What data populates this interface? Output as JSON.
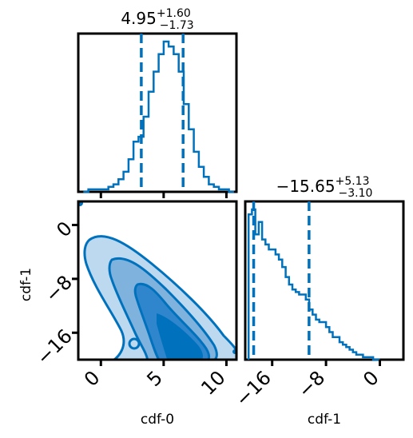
{
  "colors": {
    "accent": "#0072bd",
    "frame": "#000000",
    "fill_light": "#bcd9ef",
    "fill_mid": "#7fb2dc",
    "fill_dark": "#2f86cc"
  },
  "chart_data": [
    {
      "type": "histogram",
      "panel": "cdf-0 marginal",
      "title": {
        "value": "4.95",
        "sup": "+1.60",
        "sub": "−1.73"
      },
      "xlim": [
        -1.8,
        10.8
      ],
      "quantiles": [
        3.22,
        4.95,
        6.55
      ],
      "bins": [
        -1.4,
        -1.0,
        -0.6,
        -0.2,
        0.2,
        0.6,
        1.0,
        1.4,
        1.8,
        2.2,
        2.6,
        3.0,
        3.4,
        3.8,
        4.2,
        4.6,
        5.0,
        5.4,
        5.8,
        6.2,
        6.6,
        7.0,
        7.4,
        7.8,
        8.2,
        8.6,
        9.0,
        9.4,
        9.8,
        10.2,
        10.6
      ],
      "counts": [
        0,
        1,
        1,
        1,
        1,
        2,
        3,
        5,
        8,
        13,
        20,
        22,
        30,
        40,
        48,
        55,
        60,
        58,
        55,
        48,
        35,
        25,
        16,
        10,
        6,
        3,
        2,
        1,
        1,
        0
      ]
    },
    {
      "type": "contour",
      "panel": "cdf-0 vs cdf-1",
      "xlabel": "cdf-0",
      "ylabel": "cdf-1",
      "xlim": [
        -1.8,
        10.8
      ],
      "ylim": [
        -20.0,
        3.5
      ],
      "xticks": [
        "0",
        "5",
        "10"
      ],
      "yticks": [
        "0",
        "−8",
        "−16"
      ],
      "levels": [
        "outer",
        "middle",
        "inner"
      ]
    },
    {
      "type": "histogram",
      "panel": "cdf-1 marginal",
      "title": {
        "value": "−15.65",
        "sup": "+5.13",
        "sub": "−3.10"
      },
      "xlabel": "cdf-1",
      "xlim": [
        -20.0,
        3.5
      ],
      "xticks": [
        "−16",
        "−8",
        "0"
      ],
      "quantiles": [
        -18.75,
        -15.65,
        -10.52
      ],
      "bins": [
        -19.5,
        -19.0,
        -18.5,
        -18.0,
        -17.5,
        -17.0,
        -16.5,
        -16.0,
        -15.5,
        -15.0,
        -14.5,
        -14.0,
        -13.5,
        -13.0,
        -12.5,
        -12.0,
        -11.5,
        -11.0,
        -10.5,
        -10.0,
        -9.5,
        -9.0,
        -8.5,
        -8.0,
        -7.5,
        -7.0,
        -6.5,
        -6.0,
        -5.5,
        -5.0,
        -4.5,
        -4.0,
        -3.5,
        -3.0,
        -2.5,
        -2.0,
        -1.5,
        -1.0,
        -0.5,
        0.0
      ],
      "counts": [
        58,
        60,
        50,
        55,
        48,
        46,
        44,
        44,
        42,
        40,
        37,
        33,
        30,
        28,
        27,
        26,
        26,
        24,
        20,
        18,
        16,
        15,
        15,
        13,
        11,
        9,
        9,
        7,
        6,
        5,
        4,
        3,
        2,
        2,
        1,
        1,
        1,
        0,
        0
      ]
    }
  ]
}
